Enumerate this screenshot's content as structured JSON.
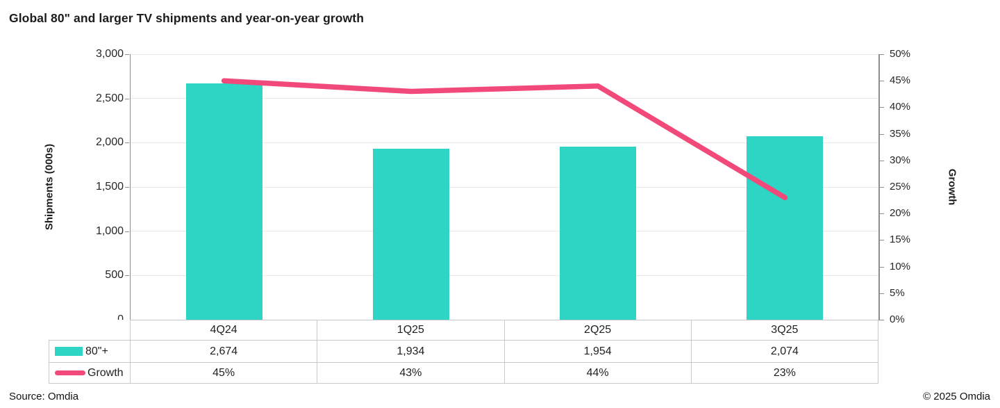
{
  "title": "Global 80\" and larger TV shipments and year-on-year growth",
  "footer": {
    "source": "Source: Omdia",
    "copyright": "© 2025 Omdia"
  },
  "colors": {
    "bar": "#2ed4c4",
    "line": "#f2497b",
    "gridline": "#e8e8e8",
    "axis": "#8c8c8c",
    "table_border": "#c9c9c9"
  },
  "chart_data": {
    "type": "bar",
    "subtype": "combo bar + line, dual axis, with data table legend",
    "title": "Global 80\" and larger TV shipments and year-on-year growth",
    "categories": [
      "4Q24",
      "1Q25",
      "2Q25",
      "3Q25"
    ],
    "series": [
      {
        "name": "80\"+",
        "type": "bar",
        "axis": "left",
        "color": "#2ed4c4",
        "values": [
          2674,
          1934,
          1954,
          2074
        ],
        "formatted": [
          "2,674",
          "1,934",
          "1,954",
          "2,074"
        ]
      },
      {
        "name": "Growth",
        "type": "line",
        "axis": "right",
        "color": "#f2497b",
        "values": [
          45,
          43,
          44,
          23
        ],
        "formatted": [
          "45%",
          "43%",
          "44%",
          "23%"
        ]
      }
    ],
    "left_axis": {
      "label": "Shipments (000s)",
      "min": 0,
      "max": 3000,
      "step": 500,
      "tick_labels": [
        "0",
        "500",
        "1,000",
        "1,500",
        "2,000",
        "2,500",
        "3,000"
      ]
    },
    "right_axis": {
      "label": "Growth",
      "min": 0,
      "max": 50,
      "step": 5,
      "tick_labels": [
        "0%",
        "5%",
        "10%",
        "15%",
        "20%",
        "25%",
        "30%",
        "35%",
        "40%",
        "45%",
        "50%"
      ]
    },
    "grid": true,
    "legend_position": "data table, left column"
  }
}
